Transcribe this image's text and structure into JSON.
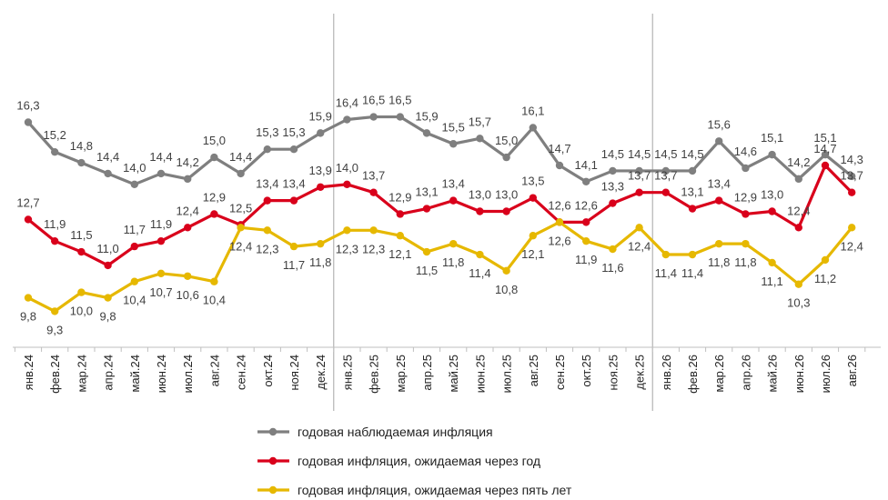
{
  "chart_data": {
    "type": "line",
    "categories": [
      "янв.24",
      "фев.24",
      "мар.24",
      "апр.24",
      "май.24",
      "июн.24",
      "июл.24",
      "авг.24",
      "сен.24",
      "окт.24",
      "ноя.24",
      "дек.24",
      "янв.25",
      "фев.25",
      "мар.25",
      "апр.25",
      "май.25",
      "июн.25",
      "июл.25",
      "авг.25",
      "сен.25",
      "окт.25",
      "ноя.25",
      "дек.25",
      "янв.26",
      "фев.26",
      "мар.26",
      "апр.26",
      "май.26",
      "июн.26",
      "июл.26",
      "авг.26"
    ],
    "series": [
      {
        "name": "годовая наблюдаемая инфляция",
        "color": "#7f7f7f",
        "values": [
          16.3,
          15.2,
          14.8,
          14.4,
          14.0,
          14.4,
          14.2,
          15.0,
          14.4,
          15.3,
          15.3,
          15.9,
          16.4,
          16.5,
          16.5,
          15.9,
          15.5,
          15.7,
          15.0,
          16.1,
          14.7,
          14.1,
          14.5,
          14.5,
          14.5,
          14.5,
          15.6,
          14.6,
          15.1,
          14.2,
          15.1,
          14.3
        ],
        "labels": [
          "16,3",
          "15,2",
          "14,8",
          "14,4",
          "14,0",
          "14,4",
          "14,2",
          "15,0",
          "14,4",
          "15,3",
          "15,3",
          "15,9",
          "16,4",
          "16,5",
          "16,5",
          "15,9",
          "15,5",
          "15,7",
          "15,0",
          "16,1",
          "14,7",
          "14,1",
          "14,5",
          "14,5",
          "14,5",
          "14,5",
          "15,6",
          "14,6",
          "15,1",
          "14,2",
          "15,1",
          "14,3"
        ]
      },
      {
        "name": "годовая инфляция, ожидаемая через год",
        "color": "#d9001b",
        "values": [
          12.7,
          11.9,
          11.5,
          11.0,
          11.7,
          11.9,
          12.4,
          12.9,
          12.5,
          13.4,
          13.4,
          13.9,
          14.0,
          13.7,
          12.9,
          13.1,
          13.4,
          13.0,
          13.0,
          13.5,
          12.6,
          12.6,
          13.3,
          13.7,
          13.7,
          13.1,
          13.4,
          12.9,
          13.0,
          12.4,
          14.7,
          13.7
        ],
        "labels": [
          "12,7",
          "11,9",
          "11,5",
          "11,0",
          "11,7",
          "11,9",
          "12,4",
          "12,9",
          "12,5",
          "13,4",
          "13,4",
          "13,9",
          "14,0",
          "13,7",
          "12,9",
          "13,1",
          "13,4",
          "13,0",
          "13,0",
          "13,5",
          "12,6",
          "12,6",
          "13,3",
          "13,7",
          "13,7",
          "13,1",
          "13,4",
          "12,9",
          "13,0",
          "12,4",
          "14,7",
          "13,7"
        ]
      },
      {
        "name": "годовая инфляция, ожидаемая через пять лет",
        "color": "#e6b800",
        "values": [
          9.8,
          9.3,
          10.0,
          9.8,
          10.4,
          10.7,
          10.6,
          10.4,
          12.4,
          12.3,
          11.7,
          11.8,
          12.3,
          12.3,
          12.1,
          11.5,
          11.8,
          11.4,
          10.8,
          12.1,
          12.6,
          11.9,
          11.6,
          12.4,
          11.4,
          11.4,
          11.8,
          11.8,
          11.1,
          10.3,
          11.2,
          12.4
        ],
        "labels": [
          "9,8",
          "9,3",
          "10,0",
          "9,8",
          "10,4",
          "10,7",
          "10,6",
          "10,4",
          "12,4",
          "12,3",
          "11,7",
          "11,8",
          "12,3",
          "12,3",
          "12,1",
          "11,5",
          "11,8",
          "11,4",
          "10,8",
          "12,1",
          "12,6",
          "11,9",
          "11,6",
          "12,4",
          "11,4",
          "11,4",
          "11,8",
          "11,8",
          "11,1",
          "10,3",
          "11,2",
          "12,4"
        ]
      }
    ],
    "separators_after": [
      "дек.24",
      "дек.25"
    ],
    "legend_position": "bottom",
    "grid": false
  }
}
